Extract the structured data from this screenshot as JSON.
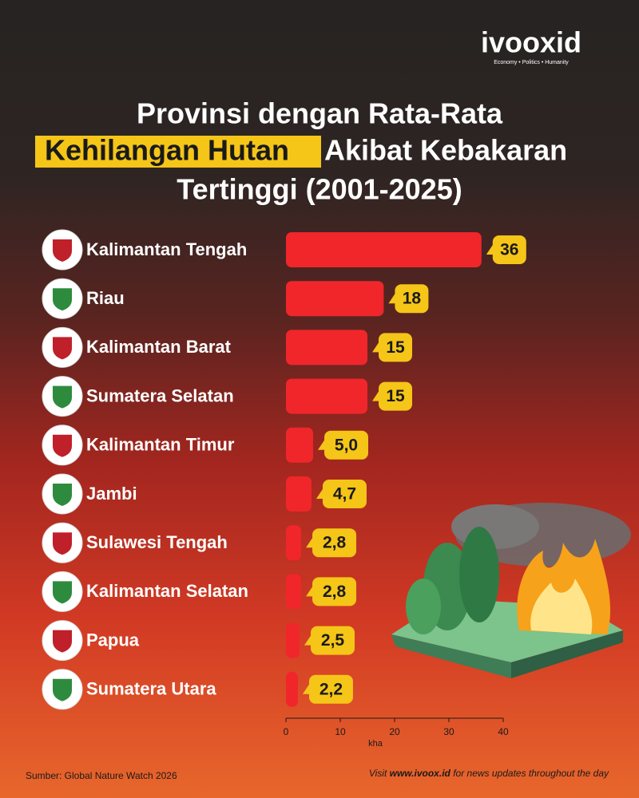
{
  "brand": {
    "name": "ivooxid",
    "tagline": "Economy • Politics • Humanity"
  },
  "chart_data": {
    "type": "bar",
    "orientation": "horizontal",
    "title": {
      "line1": "Provinsi dengan Rata-Rata",
      "highlight": "Kehilangan Hutan",
      "line2": "Akibat Kebakaran",
      "line3": "Tertinggi (2001-2025)"
    },
    "categories": [
      "Kalimantan Tengah",
      "Riau",
      "Kalimantan Barat",
      "Sumatera Selatan",
      "Kalimantan Timur",
      "Jambi",
      "Sulawesi Tengah",
      "Kalimantan Selatan",
      "Papua",
      "Sumatera Utara"
    ],
    "values": [
      36,
      18,
      15,
      15,
      5.0,
      4.7,
      2.8,
      2.8,
      2.5,
      2.2
    ],
    "value_labels": [
      "36",
      "18",
      "15",
      "15",
      "5,0",
      "4,7",
      "2,8",
      "2,8",
      "2,5",
      "2,2"
    ],
    "color": "#f0262b",
    "label_color": "#f5c518",
    "xlim": [
      0,
      40
    ],
    "xticks": [
      0,
      10,
      20,
      30,
      40
    ],
    "x_label": "kha"
  },
  "footer": {
    "source": "Sumber: Global Nature Watch 2026",
    "visit": [
      "Visit ",
      "www.ivoox.id",
      " for news updates throughout the day"
    ]
  }
}
